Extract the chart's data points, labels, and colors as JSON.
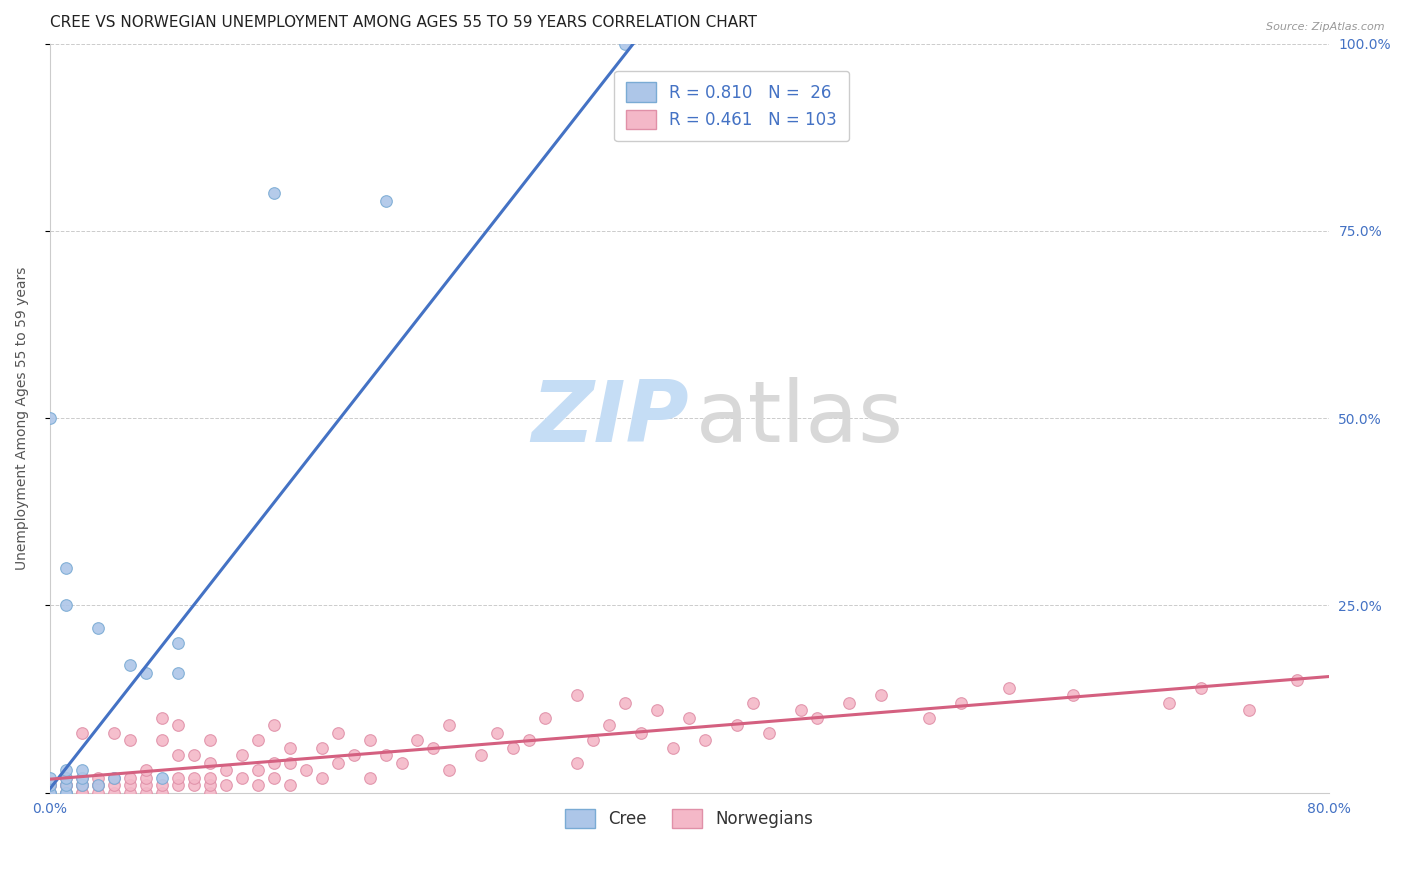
{
  "title": "CREE VS NORWEGIAN UNEMPLOYMENT AMONG AGES 55 TO 59 YEARS CORRELATION CHART",
  "source": "Source: ZipAtlas.com",
  "ylabel": "Unemployment Among Ages 55 to 59 years",
  "xlim": [
    0.0,
    0.8
  ],
  "ylim": [
    0.0,
    1.0
  ],
  "cree_R": 0.81,
  "cree_N": 26,
  "norwegian_R": 0.461,
  "norwegian_N": 103,
  "cree_color": "#adc6e8",
  "cree_edge_color": "#7aabd4",
  "cree_line_color": "#4472c4",
  "norwegian_color": "#f4b8c8",
  "norwegian_edge_color": "#e090a8",
  "norwegian_line_color": "#d46080",
  "background_color": "#ffffff",
  "grid_color": "#cccccc",
  "tick_color": "#4472c4",
  "title_fontsize": 11,
  "axis_label_fontsize": 10,
  "tick_fontsize": 10,
  "legend_fontsize": 12,
  "figsize": [
    14.06,
    8.92
  ],
  "dpi": 100,
  "cree_x": [
    0.0,
    0.0,
    0.0,
    0.0,
    0.0,
    0.01,
    0.01,
    0.01,
    0.01,
    0.01,
    0.01,
    0.01,
    0.02,
    0.02,
    0.02,
    0.03,
    0.03,
    0.04,
    0.05,
    0.06,
    0.07,
    0.08,
    0.08,
    0.14,
    0.21,
    0.36
  ],
  "cree_y": [
    0.0,
    0.0,
    0.01,
    0.02,
    0.5,
    0.0,
    0.0,
    0.01,
    0.02,
    0.03,
    0.25,
    0.3,
    0.01,
    0.02,
    0.03,
    0.01,
    0.22,
    0.02,
    0.17,
    0.16,
    0.02,
    0.16,
    0.2,
    0.8,
    0.79,
    1.0
  ],
  "norwegian_x": [
    0.0,
    0.0,
    0.0,
    0.01,
    0.01,
    0.01,
    0.01,
    0.01,
    0.02,
    0.02,
    0.02,
    0.02,
    0.02,
    0.02,
    0.03,
    0.03,
    0.03,
    0.03,
    0.04,
    0.04,
    0.04,
    0.04,
    0.05,
    0.05,
    0.05,
    0.05,
    0.06,
    0.06,
    0.06,
    0.06,
    0.07,
    0.07,
    0.07,
    0.07,
    0.08,
    0.08,
    0.08,
    0.08,
    0.09,
    0.09,
    0.09,
    0.1,
    0.1,
    0.1,
    0.1,
    0.1,
    0.11,
    0.11,
    0.12,
    0.12,
    0.13,
    0.13,
    0.13,
    0.14,
    0.14,
    0.14,
    0.15,
    0.15,
    0.15,
    0.16,
    0.17,
    0.17,
    0.18,
    0.18,
    0.19,
    0.2,
    0.2,
    0.21,
    0.22,
    0.23,
    0.24,
    0.25,
    0.25,
    0.27,
    0.28,
    0.29,
    0.3,
    0.31,
    0.33,
    0.33,
    0.34,
    0.35,
    0.36,
    0.37,
    0.38,
    0.39,
    0.4,
    0.41,
    0.43,
    0.44,
    0.45,
    0.47,
    0.48,
    0.5,
    0.52,
    0.55,
    0.57,
    0.6,
    0.64,
    0.7,
    0.72,
    0.75,
    0.78
  ],
  "norwegian_y": [
    0.0,
    0.01,
    0.01,
    0.0,
    0.0,
    0.01,
    0.01,
    0.02,
    0.0,
    0.0,
    0.01,
    0.01,
    0.02,
    0.08,
    0.0,
    0.01,
    0.01,
    0.02,
    0.0,
    0.01,
    0.02,
    0.08,
    0.0,
    0.01,
    0.02,
    0.07,
    0.0,
    0.01,
    0.02,
    0.03,
    0.0,
    0.01,
    0.07,
    0.1,
    0.01,
    0.02,
    0.05,
    0.09,
    0.01,
    0.02,
    0.05,
    0.0,
    0.01,
    0.02,
    0.04,
    0.07,
    0.01,
    0.03,
    0.02,
    0.05,
    0.01,
    0.03,
    0.07,
    0.02,
    0.04,
    0.09,
    0.01,
    0.04,
    0.06,
    0.03,
    0.02,
    0.06,
    0.04,
    0.08,
    0.05,
    0.02,
    0.07,
    0.05,
    0.04,
    0.07,
    0.06,
    0.03,
    0.09,
    0.05,
    0.08,
    0.06,
    0.07,
    0.1,
    0.04,
    0.13,
    0.07,
    0.09,
    0.12,
    0.08,
    0.11,
    0.06,
    0.1,
    0.07,
    0.09,
    0.12,
    0.08,
    0.11,
    0.1,
    0.12,
    0.13,
    0.1,
    0.12,
    0.14,
    0.13,
    0.12,
    0.14,
    0.11,
    0.15
  ],
  "cree_line_x": [
    0.0,
    0.365
  ],
  "cree_line_y": [
    0.005,
    1.0
  ],
  "norwegian_line_x": [
    0.0,
    0.8
  ],
  "norwegian_line_y": [
    0.018,
    0.155
  ]
}
